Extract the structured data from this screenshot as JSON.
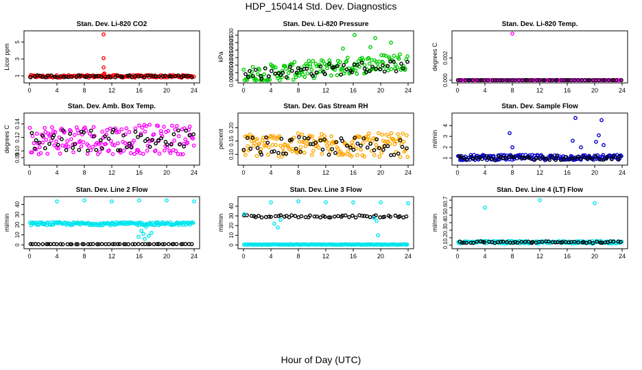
{
  "figure": {
    "title": "HDP_150414  Std. Dev. Diagnostics",
    "xlabel": "Hour of Day (UTC)"
  },
  "chart_data": [
    {
      "type": "scatter",
      "title": "Stan. Dev. Li-820 CO2",
      "ylabel": "Licor ppm",
      "xlim": [
        0,
        24
      ],
      "ylim": [
        0.5,
        6
      ],
      "xticks": [
        0,
        4,
        8,
        12,
        16,
        20,
        24
      ],
      "xtick_labels": [
        "0",
        "4",
        "8",
        "12",
        "16",
        "20",
        "24"
      ],
      "yticks": [
        1,
        3,
        5
      ],
      "ytick_labels": [
        "1",
        "3",
        "5"
      ],
      "series": [
        {
          "color": "#ff0000",
          "kind": "band",
          "base": 0.95,
          "spread": 0.15,
          "dense": true
        },
        {
          "color": "#000000",
          "kind": "band",
          "base": 0.95,
          "spread": 0.12,
          "dense": false
        },
        {
          "color": "#ff0000",
          "kind": "points",
          "points": [
            [
              10.8,
              5.9
            ],
            [
              10.8,
              3.1
            ],
            [
              10.8,
              2.0
            ],
            [
              10.9,
              1.3
            ],
            [
              10.9,
              1.2
            ]
          ]
        }
      ]
    },
    {
      "type": "scatter",
      "title": "Stan. Dev. Li-820 Pressure",
      "ylabel": "kPa",
      "xlim": [
        0,
        24
      ],
      "ylim": [
        0,
        0.031
      ],
      "xticks": [
        0,
        4,
        8,
        12,
        16,
        20,
        24
      ],
      "xtick_labels": [
        "0",
        "4",
        "8",
        "12",
        "16",
        "20",
        "24"
      ],
      "yticks": [
        0.0,
        0.005,
        0.01,
        0.015,
        0.02,
        0.025,
        0.03
      ],
      "ytick_labels": [
        "0.000",
        "0.005",
        "0.010",
        "0.015",
        "0.020",
        "0.025",
        "0.030"
      ],
      "series": [
        {
          "color": "#00cc00",
          "kind": "trend",
          "start": 0.003,
          "end": 0.013,
          "spread": 0.006,
          "dense": true
        },
        {
          "color": "#000000",
          "kind": "trend",
          "start": 0.004,
          "end": 0.01,
          "spread": 0.004,
          "dense": false
        },
        {
          "color": "#00cc00",
          "kind": "points",
          "points": [
            [
              16.2,
              0.03
            ],
            [
              19.2,
              0.028
            ],
            [
              21.5,
              0.025
            ],
            [
              18.5,
              0.022
            ],
            [
              14.5,
              0.021
            ]
          ]
        }
      ]
    },
    {
      "type": "scatter",
      "title": "Stan. Dev. Li-820 Temp.",
      "ylabel": "degrees C",
      "xlim": [
        0,
        24
      ],
      "ylim": [
        0,
        0.0042
      ],
      "xticks": [
        0,
        4,
        8,
        12,
        16,
        20,
        24
      ],
      "xtick_labels": [
        "0",
        "4",
        "8",
        "12",
        "16",
        "20",
        "24"
      ],
      "yticks": [
        0.0,
        0.002
      ],
      "ytick_labels": [
        "0.000",
        "0.002"
      ],
      "series": [
        {
          "color": "#ff00ff",
          "kind": "band",
          "base": 0.0,
          "spread": 1e-05,
          "dense": true
        },
        {
          "color": "#000000",
          "kind": "band",
          "base": 0.0,
          "spread": 1e-05,
          "dense": false
        },
        {
          "color": "#ff00ff",
          "kind": "points",
          "points": [
            [
              8.0,
              0.0042
            ]
          ]
        }
      ]
    },
    {
      "type": "scatter",
      "title": "Stan. Dev. Amb. Box Temp.",
      "ylabel": "degrees C",
      "xlim": [
        0,
        24
      ],
      "ylim": [
        0.083,
        0.152
      ],
      "xticks": [
        0,
        4,
        8,
        12,
        16,
        20,
        24
      ],
      "xtick_labels": [
        "0",
        "4",
        "8",
        "12",
        "16",
        "20",
        "24"
      ],
      "yticks": [
        0.09,
        0.1,
        0.12,
        0.14
      ],
      "ytick_labels": [
        "0.09",
        "0.10",
        "0.12",
        "0.14"
      ],
      "series": [
        {
          "color": "#ff00ff",
          "kind": "band",
          "base": 0.117,
          "spread": 0.022,
          "dense": true
        },
        {
          "color": "#000000",
          "kind": "band",
          "base": 0.116,
          "spread": 0.016,
          "dense": false
        }
      ]
    },
    {
      "type": "scatter",
      "title": "Stan. Dev. Gas Stream RH",
      "ylabel": "percent",
      "xlim": [
        0,
        24
      ],
      "ylim": [
        0.07,
        0.245
      ],
      "xticks": [
        0,
        4,
        8,
        12,
        16,
        20,
        24
      ],
      "xtick_labels": [
        "0",
        "4",
        "8",
        "12",
        "16",
        "20",
        "24"
      ],
      "yticks": [
        0.1,
        0.15,
        0.2
      ],
      "ytick_labels": [
        "0.10",
        "0.15",
        "0.20"
      ],
      "series": [
        {
          "color": "#ffa500",
          "kind": "band",
          "base": 0.135,
          "spread": 0.045,
          "dense": true
        },
        {
          "color": "#000000",
          "kind": "band",
          "base": 0.13,
          "spread": 0.035,
          "dense": false
        }
      ]
    },
    {
      "type": "scatter",
      "title": "Stan. Dev. Sample Flow",
      "ylabel": "ml/min",
      "xlim": [
        0,
        24
      ],
      "ylim": [
        0.6,
        4.9
      ],
      "xticks": [
        0,
        4,
        8,
        12,
        16,
        20,
        24
      ],
      "xtick_labels": [
        "0",
        "4",
        "8",
        "12",
        "16",
        "20",
        "24"
      ],
      "yticks": [
        1,
        2,
        3,
        4
      ],
      "ytick_labels": [
        "1",
        "2",
        "3",
        "4"
      ],
      "series": [
        {
          "color": "#0000cc",
          "kind": "band",
          "base": 1.05,
          "spread": 0.25,
          "dense": true
        },
        {
          "color": "#000000",
          "kind": "band",
          "base": 1.0,
          "spread": 0.2,
          "dense": false
        },
        {
          "color": "#0000cc",
          "kind": "points",
          "points": [
            [
              17.2,
              4.7
            ],
            [
              21.0,
              4.5
            ],
            [
              7.6,
              3.3
            ],
            [
              20.6,
              3.1
            ],
            [
              16.8,
              2.6
            ],
            [
              20.2,
              2.5
            ],
            [
              21.3,
              2.2
            ],
            [
              8.0,
              2.0
            ],
            [
              18.0,
              2.0
            ]
          ]
        }
      ]
    },
    {
      "type": "scatter",
      "title": "Stan. Dev. Line 2 Flow",
      "ylabel": "ml/min",
      "xlim": [
        0,
        24
      ],
      "ylim": [
        -1,
        45
      ],
      "xticks": [
        0,
        4,
        8,
        12,
        16,
        20,
        24
      ],
      "xtick_labels": [
        "0",
        "4",
        "8",
        "12",
        "16",
        "20",
        "24"
      ],
      "yticks": [
        0,
        10,
        20,
        30,
        40
      ],
      "ytick_labels": [
        "0",
        "10",
        "20",
        "30",
        "40"
      ],
      "series": [
        {
          "color": "#00e5ee",
          "kind": "band",
          "base": 21,
          "spread": 1.5,
          "dense": true
        },
        {
          "color": "#000000",
          "kind": "band",
          "base": 0.8,
          "spread": 0.1,
          "dense": false
        },
        {
          "color": "#00e5ee",
          "kind": "points",
          "points": [
            [
              4.0,
              43
            ],
            [
              8.0,
              44
            ],
            [
              12.0,
              43
            ],
            [
              16.0,
              44
            ],
            [
              20.0,
              44
            ],
            [
              24.0,
              43
            ],
            [
              16.3,
              14
            ],
            [
              16.6,
              11
            ],
            [
              17.0,
              18
            ],
            [
              17.4,
              9
            ],
            [
              17.8,
              12
            ],
            [
              16.8,
              6
            ],
            [
              15.9,
              8
            ]
          ]
        }
      ]
    },
    {
      "type": "scatter",
      "title": "Stan. Dev. Line 3 Flow",
      "ylabel": "ml/min",
      "xlim": [
        0,
        24
      ],
      "ylim": [
        -1,
        47
      ],
      "xticks": [
        0,
        4,
        8,
        12,
        16,
        20,
        24
      ],
      "xtick_labels": [
        "0",
        "4",
        "8",
        "12",
        "16",
        "20",
        "24"
      ],
      "yticks": [
        0,
        10,
        20,
        30,
        40
      ],
      "ytick_labels": [
        "0",
        "10",
        "20",
        "30",
        "40"
      ],
      "series": [
        {
          "color": "#00e5ee",
          "kind": "band",
          "base": 0.5,
          "spread": 0.3,
          "dense": true
        },
        {
          "color": "#000000",
          "kind": "band",
          "base": 29.5,
          "spread": 1.2,
          "dense": false
        },
        {
          "color": "#00e5ee",
          "kind": "points",
          "points": [
            [
              0.1,
              32
            ],
            [
              4.0,
              44
            ],
            [
              8.0,
              45
            ],
            [
              12.0,
              44
            ],
            [
              16.0,
              44
            ],
            [
              20.0,
              44
            ],
            [
              24.0,
              43
            ],
            [
              4.5,
              22
            ],
            [
              5.0,
              18
            ],
            [
              5.4,
              26
            ],
            [
              19.4,
              25
            ],
            [
              19.6,
              10
            ],
            [
              19.0,
              28
            ]
          ]
        }
      ]
    },
    {
      "type": "scatter",
      "title": "Stan. Dev. Line 4 (LT) Flow",
      "ylabel": "ml/min",
      "xlim": [
        0,
        24
      ],
      "ylim": [
        0.09,
        0.71
      ],
      "xticks": [
        0,
        4,
        8,
        12,
        16,
        20,
        24
      ],
      "xtick_labels": [
        "0",
        "4",
        "8",
        "12",
        "16",
        "20",
        "24"
      ],
      "yticks": [
        0.1,
        0.2,
        0.3,
        0.4,
        0.5,
        0.6,
        0.7
      ],
      "ytick_labels": [
        "0.1",
        "0.2",
        "0.3",
        "0.4",
        "0.5",
        "0.6",
        "0.7"
      ],
      "series": [
        {
          "color": "#00e5ee",
          "kind": "band",
          "base": 0.14,
          "spread": 0.018,
          "dense": true
        },
        {
          "color": "#000000",
          "kind": "band",
          "base": 0.14,
          "spread": 0.012,
          "dense": false
        },
        {
          "color": "#00e5ee",
          "kind": "points",
          "points": [
            [
              4.0,
              0.6
            ],
            [
              12.0,
              0.7
            ],
            [
              20.0,
              0.66
            ]
          ]
        }
      ]
    }
  ]
}
